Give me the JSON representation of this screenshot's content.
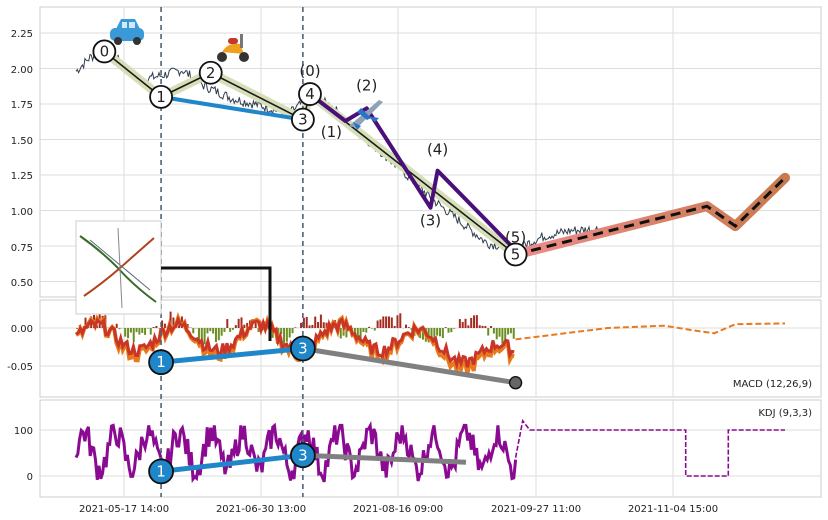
{
  "chart_data": [
    {
      "type": "line",
      "panel": "price",
      "title": "",
      "y_ticks": [
        "2.25",
        "2.00",
        "1.75",
        "1.50",
        "1.25",
        "1.00",
        "0.75",
        "0.50"
      ],
      "ylim": [
        0.38,
        2.42
      ],
      "x_ticks": [
        "2021-05-17 14:00",
        "2021-06-30 13:00",
        "2021-08-16 09:00",
        "2021-09-27 11:00",
        "2021-11-04 15:00"
      ],
      "grid": true,
      "price_path": [
        {
          "t": 0.0,
          "y": 1.98
        },
        {
          "t": 0.02,
          "y": 2.08
        },
        {
          "t": 0.04,
          "y": 2.12
        },
        {
          "t": 0.06,
          "y": 2.06
        },
        {
          "t": 0.09,
          "y": 1.92
        },
        {
          "t": 0.12,
          "y": 1.95
        },
        {
          "t": 0.15,
          "y": 1.99
        },
        {
          "t": 0.18,
          "y": 1.88
        },
        {
          "t": 0.22,
          "y": 1.79
        },
        {
          "t": 0.26,
          "y": 1.74
        },
        {
          "t": 0.3,
          "y": 1.68
        },
        {
          "t": 0.33,
          "y": 1.8
        },
        {
          "t": 0.36,
          "y": 1.74
        },
        {
          "t": 0.39,
          "y": 1.58
        },
        {
          "t": 0.42,
          "y": 1.46
        },
        {
          "t": 0.46,
          "y": 1.28
        },
        {
          "t": 0.5,
          "y": 1.09
        },
        {
          "t": 0.54,
          "y": 0.93
        },
        {
          "t": 0.58,
          "y": 0.77
        },
        {
          "t": 0.62,
          "y": 0.73
        },
        {
          "t": 0.66,
          "y": 0.82
        },
        {
          "t": 0.7,
          "y": 0.86
        },
        {
          "t": 0.74,
          "y": 0.87
        }
      ],
      "wave_points": [
        {
          "label": "0",
          "t": 0.04,
          "y": 2.12
        },
        {
          "label": "1",
          "t": 0.12,
          "y": 1.8
        },
        {
          "label": "2",
          "t": 0.19,
          "y": 1.97
        },
        {
          "label": "3",
          "t": 0.32,
          "y": 1.64
        },
        {
          "label": "4",
          "t": 0.33,
          "y": 1.82
        },
        {
          "label": "5",
          "t": 0.62,
          "y": 0.69
        }
      ],
      "sub_wave_points": [
        {
          "label": "(0)",
          "t": 0.33,
          "y": 1.82
        },
        {
          "label": "(1)",
          "t": 0.38,
          "y": 1.63
        },
        {
          "label": "(2)",
          "t": 0.41,
          "y": 1.72
        },
        {
          "label": "(3)",
          "t": 0.5,
          "y": 1.02
        },
        {
          "label": "(4)",
          "t": 0.51,
          "y": 1.28
        },
        {
          "label": "(5)",
          "t": 0.62,
          "y": 0.72
        }
      ],
      "forecast_path": [
        {
          "t": 0.62,
          "y": 0.69
        },
        {
          "t": 0.89,
          "y": 1.03
        },
        {
          "t": 0.93,
          "y": 0.89
        },
        {
          "t": 1.0,
          "y": 1.23
        }
      ],
      "divergence_points": [
        {
          "label": "1",
          "t": 0.12,
          "y": 1.8
        },
        {
          "label": "3",
          "t": 0.32,
          "y": 1.64
        }
      ],
      "markers": [
        "car-icon",
        "scooter-icon",
        "airplane-icon"
      ]
    },
    {
      "type": "line",
      "panel": "macd",
      "label": "MACD (12,26,9)",
      "y_ticks": [
        "0.00",
        "-0.05"
      ],
      "ylim": [
        -0.09,
        0.04
      ],
      "divergence_points": [
        {
          "label": "1",
          "t": 0.12,
          "y": -0.045
        },
        {
          "label": "3",
          "t": 0.32,
          "y": -0.027
        }
      ],
      "end_point": {
        "t": 0.62,
        "y": -0.072
      },
      "flat_tail": [
        {
          "t": 0.75,
          "y": 0.0
        },
        {
          "t": 0.83,
          "y": 0.003
        },
        {
          "t": 0.87,
          "y": -0.003
        },
        {
          "t": 0.9,
          "y": -0.007
        },
        {
          "t": 0.93,
          "y": 0.005
        },
        {
          "t": 1.0,
          "y": 0.006
        }
      ]
    },
    {
      "type": "line",
      "panel": "kdj",
      "label": "KDJ (9,3,3)",
      "y_ticks": [
        "100",
        "0"
      ],
      "ylim": [
        -45,
        160
      ],
      "divergence_points": [
        {
          "label": "1",
          "t": 0.12,
          "y": 10
        },
        {
          "label": "3",
          "t": 0.32,
          "y": 45
        }
      ],
      "end_point": {
        "t": 0.55,
        "y": 30
      },
      "flat_tail": [
        {
          "t": 0.75,
          "y": 100
        },
        {
          "t": 0.86,
          "y": 100
        },
        {
          "t": 0.86,
          "y": 0
        },
        {
          "t": 0.92,
          "y": 0
        },
        {
          "t": 0.92,
          "y": 100
        },
        {
          "t": 1.0,
          "y": 100
        }
      ]
    }
  ],
  "colors": {
    "price_line": "#2f3e4e",
    "wave_line": "#1a1a1a",
    "wave_band": "#d6dfb8",
    "sub_wave": "#4b0f7a",
    "divergence": "#1f87c9",
    "divergence_tail": "#808080",
    "macd_line": "#e8791c",
    "macd_signal": "#c93527",
    "kdj_line": "#8a0a91",
    "forecast_band": "#ef8c8c",
    "forecast_band_end": "#c77a4e",
    "guide_line": "#4d6378",
    "bar_pos": "#a52a1f",
    "bar_neg": "#6b8e23"
  }
}
